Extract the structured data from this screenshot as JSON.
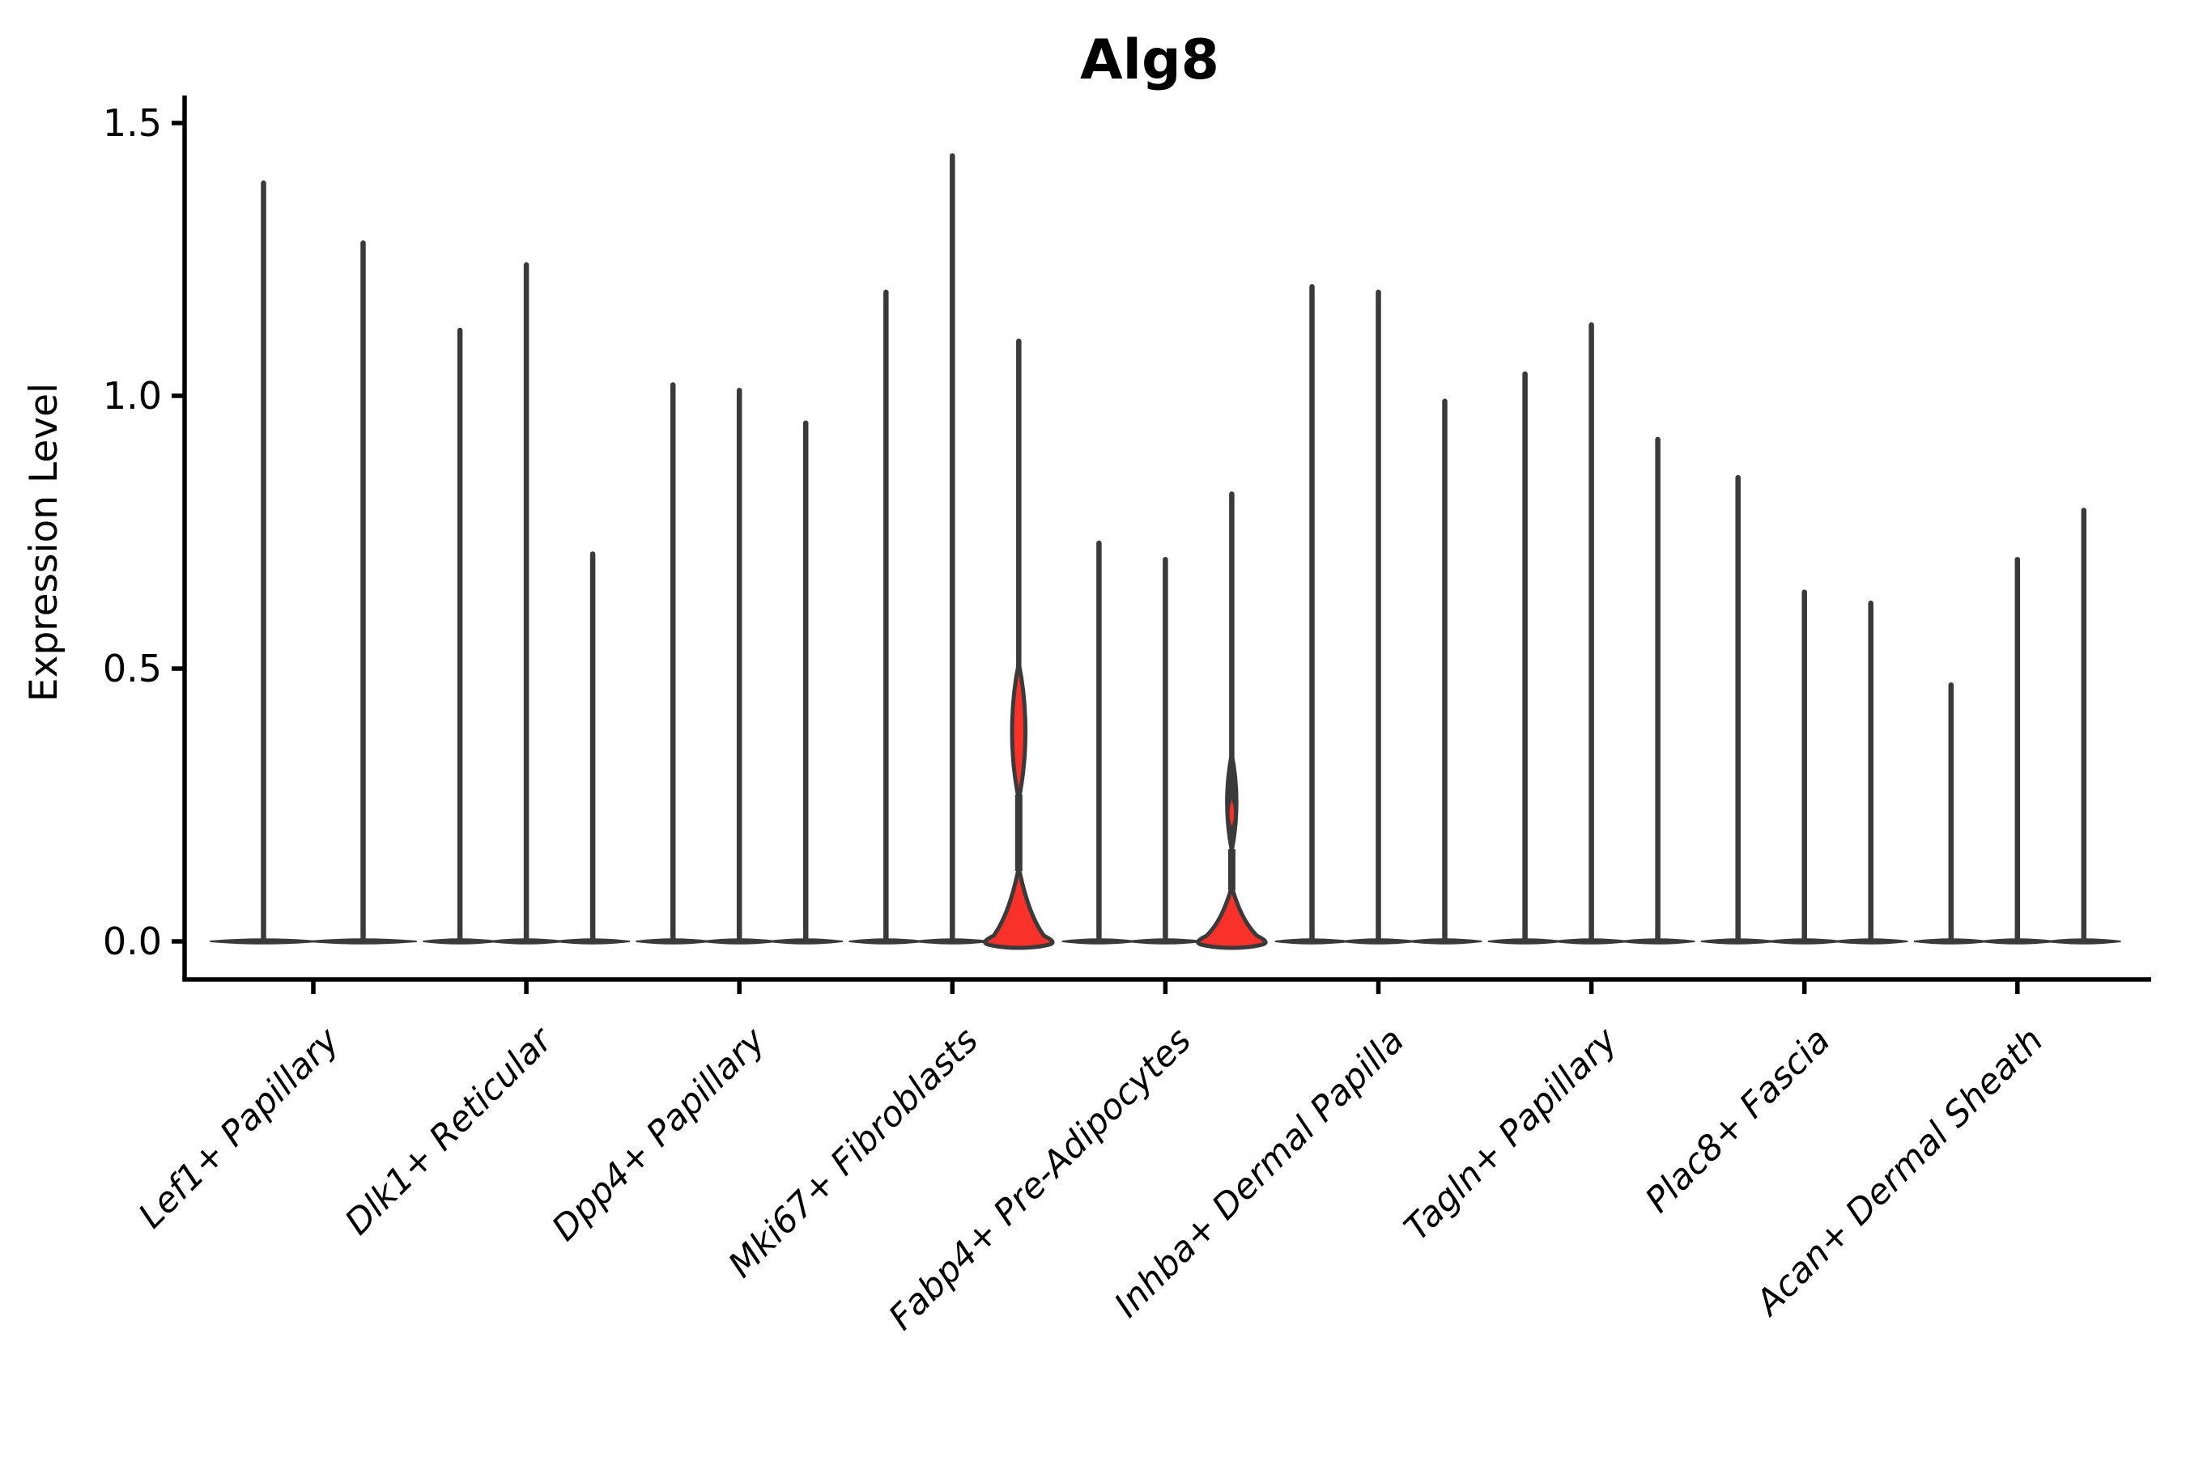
{
  "title": "Alg8",
  "y_axis": {
    "label": "Expression Level",
    "tick_labels": [
      "0.0",
      "0.5",
      "1.0",
      "1.5"
    ]
  },
  "chart_data": {
    "type": "violin",
    "title": "Alg8",
    "xlabel": "",
    "ylabel": "Expression Level",
    "ylim": [
      0,
      1.5
    ],
    "yticks": [
      0.0,
      0.5,
      1.0,
      1.5
    ],
    "ytick_labels": [
      "0.0",
      "0.5",
      "1.0",
      "1.5"
    ],
    "grid": false,
    "legend": "none",
    "categories": [
      "Lef1+ Papillary",
      "Dlk1+ Reticular",
      "Dpp4+ Papillary",
      "Mki67+ Fibroblasts",
      "Fabp4+ Pre-Adipocytes",
      "Inhba+ Dermal Papilla",
      "Tagln+ Papillary",
      "Plac8+ Fascia",
      "Acan+ Dermal Sheath"
    ],
    "groups": [
      {
        "category": "Lef1+ Papillary",
        "violins": [
          {
            "max": 1.39
          },
          {
            "max": 1.28
          }
        ]
      },
      {
        "category": "Dlk1+ Reticular",
        "violins": [
          {
            "max": 1.12
          },
          {
            "max": 1.24
          },
          {
            "max": 0.71
          }
        ]
      },
      {
        "category": "Dpp4+ Papillary",
        "violins": [
          {
            "max": 1.02
          },
          {
            "max": 1.01
          },
          {
            "max": 0.95
          }
        ]
      },
      {
        "category": "Mki67+ Fibroblasts",
        "violins": [
          {
            "max": 1.19
          },
          {
            "max": 1.44
          },
          {
            "max": 1.1,
            "filled": true,
            "bulge": {
              "lo": 0.26,
              "hi": 0.51,
              "half_width": 11
            },
            "foot_top": 0.135
          }
        ]
      },
      {
        "category": "Fabp4+ Pre-Adipocytes",
        "violins": [
          {
            "max": 0.73
          },
          {
            "max": 0.7
          },
          {
            "max": 0.82,
            "filled": true,
            "bulge": {
              "lo": 0.21,
              "hi": 0.26,
              "half_width": 4
            },
            "outline_bulge": {
              "lo": 0.16,
              "hi": 0.35,
              "half_width": 9
            },
            "foot_top": 0.1
          }
        ]
      },
      {
        "category": "Inhba+ Dermal Papilla",
        "violins": [
          {
            "max": 1.2
          },
          {
            "max": 1.19
          },
          {
            "max": 0.99
          }
        ]
      },
      {
        "category": "Tagln+ Papillary",
        "violins": [
          {
            "max": 1.04
          },
          {
            "max": 1.13
          },
          {
            "max": 0.92
          }
        ]
      },
      {
        "category": "Plac8+ Fascia",
        "violins": [
          {
            "max": 0.85
          },
          {
            "max": 0.64
          },
          {
            "max": 0.62
          }
        ]
      },
      {
        "category": "Acan+ Dermal Sheath",
        "violins": [
          {
            "max": 0.47
          },
          {
            "max": 0.7
          },
          {
            "max": 0.79
          }
        ]
      }
    ],
    "colors": {
      "highlight_fill": "#f8312a",
      "violin_line": "#3a3a3a",
      "axis": "#000000",
      "background": "#ffffff"
    }
  }
}
